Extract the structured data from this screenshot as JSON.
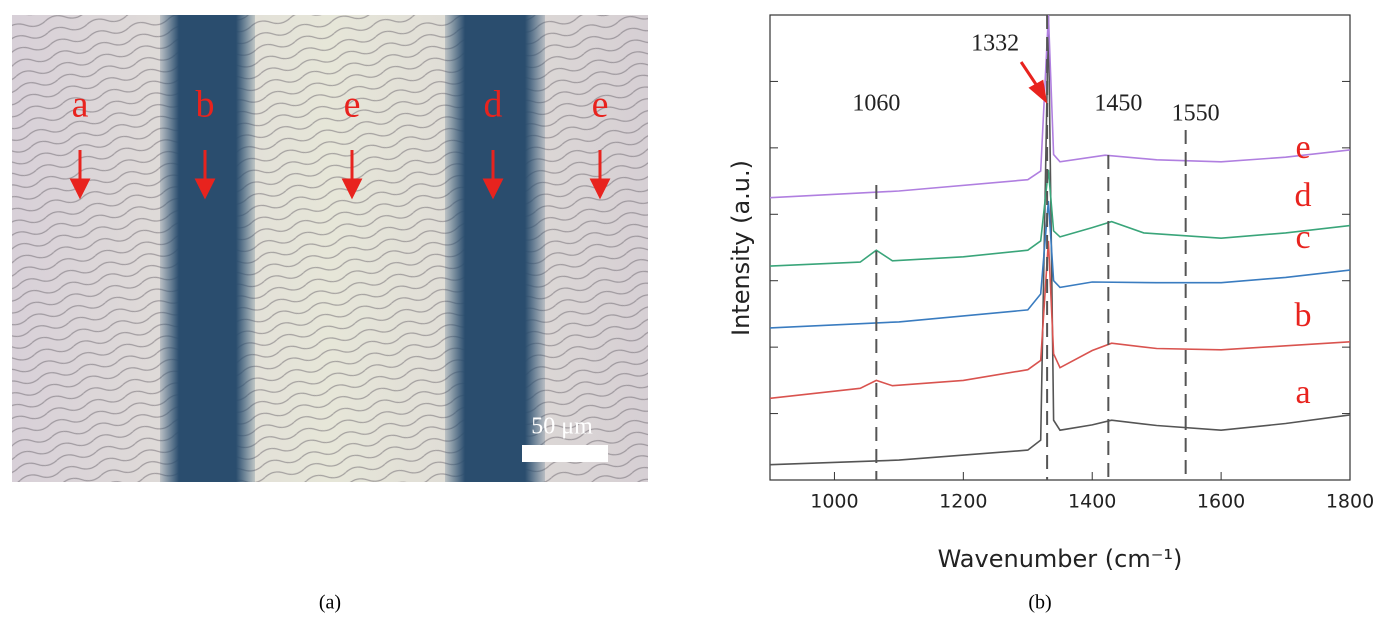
{
  "panel_a": {
    "labels": [
      "a",
      "b",
      "e",
      "d",
      "e"
    ],
    "scale_bar": "50 μm",
    "caption": "(a)"
  },
  "chart_data": {
    "type": "line",
    "caption": "(b)",
    "xlabel": "Wavenumber (cm⁻¹)",
    "ylabel": "Intensity (a.u.)",
    "xlim": [
      900,
      1800
    ],
    "xticks": [
      1000,
      1200,
      1400,
      1600,
      1800
    ],
    "ylim": [
      0,
      7
    ],
    "yticks": [
      0,
      1,
      2,
      3,
      4,
      5,
      6,
      7
    ],
    "series": [
      {
        "name": "a",
        "color": "#555555",
        "x": [
          900,
          1100,
          1300,
          1320,
          1332,
          1340,
          1350,
          1400,
          1430,
          1500,
          1600,
          1700,
          1800
        ],
        "values": [
          0.23,
          0.3,
          0.45,
          0.6,
          7,
          0.9,
          0.75,
          0.83,
          0.9,
          0.82,
          0.75,
          0.85,
          0.98
        ]
      },
      {
        "name": "b",
        "color": "#d9534f",
        "x": [
          900,
          1040,
          1065,
          1090,
          1200,
          1300,
          1320,
          1332,
          1340,
          1350,
          1400,
          1430,
          1500,
          1600,
          1700,
          1800
        ],
        "values": [
          1.23,
          1.38,
          1.5,
          1.42,
          1.5,
          1.66,
          1.8,
          3.6,
          1.9,
          1.69,
          1.95,
          2.06,
          1.98,
          1.96,
          2.02,
          2.08
        ]
      },
      {
        "name": "c",
        "color": "#3a7cc0",
        "x": [
          900,
          1100,
          1300,
          1320,
          1332,
          1340,
          1350,
          1400,
          1500,
          1600,
          1700,
          1800
        ],
        "values": [
          2.29,
          2.38,
          2.56,
          2.8,
          4.2,
          3.0,
          2.9,
          2.98,
          2.97,
          2.97,
          3.05,
          3.16
        ]
      },
      {
        "name": "d",
        "color": "#3aa57a",
        "x": [
          900,
          1040,
          1065,
          1090,
          1200,
          1300,
          1320,
          1332,
          1340,
          1350,
          1400,
          1430,
          1480,
          1600,
          1700,
          1800
        ],
        "values": [
          3.22,
          3.28,
          3.46,
          3.3,
          3.36,
          3.46,
          3.6,
          4.67,
          3.75,
          3.66,
          3.8,
          3.89,
          3.72,
          3.64,
          3.72,
          3.83
        ]
      },
      {
        "name": "e",
        "color": "#b07fe0",
        "x": [
          900,
          1100,
          1300,
          1320,
          1332,
          1340,
          1350,
          1420,
          1500,
          1600,
          1700,
          1800
        ],
        "values": [
          4.25,
          4.35,
          4.52,
          4.65,
          7,
          4.9,
          4.79,
          4.89,
          4.82,
          4.79,
          4.86,
          4.97
        ]
      }
    ],
    "annotations": [
      {
        "label": "1060",
        "x": 1065
      },
      {
        "label": "1332",
        "x": 1330
      },
      {
        "label": "1450",
        "x": 1425
      },
      {
        "label": "1550",
        "x": 1545
      }
    ]
  }
}
